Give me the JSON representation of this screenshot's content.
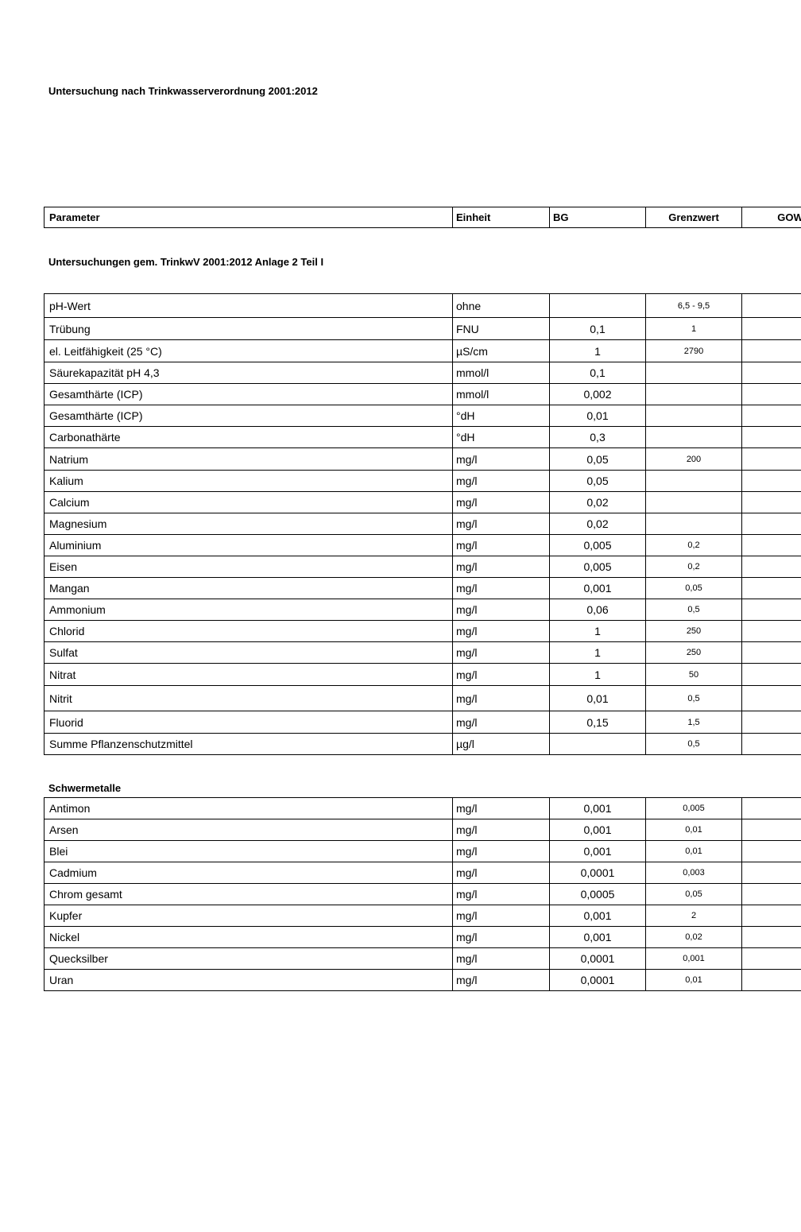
{
  "title": "Untersuchung nach Trinkwasserverordnung 2001:2012",
  "header": {
    "parameter": "Parameter",
    "einheit": "Einheit",
    "bg": "BG",
    "grenzwert": "Grenzwert",
    "gow": "GOW"
  },
  "section1": {
    "title": "Untersuchungen gem. TrinkwV 2001:2012 Anlage 2 Teil I",
    "rows": [
      {
        "p": "pH-Wert",
        "u": "ohne",
        "bg": "",
        "gw": "6,5 - 9,5"
      },
      {
        "p": "Trübung",
        "u": "FNU",
        "bg": "0,1",
        "gw": "1"
      },
      {
        "p": "el. Leitfähigkeit (25 °C)",
        "u": "µS/cm",
        "bg": "1",
        "gw": "2790"
      },
      {
        "p": "Säurekapazität pH 4,3",
        "u": "mmol/l",
        "bg": "0,1",
        "gw": ""
      },
      {
        "p": "Gesamthärte (ICP)",
        "u": "mmol/l",
        "bg": "0,002",
        "gw": ""
      },
      {
        "p": "Gesamthärte (ICP)",
        "u": "°dH",
        "bg": "0,01",
        "gw": ""
      },
      {
        "p": "Carbonathärte",
        "u": "°dH",
        "bg": "0,3",
        "gw": ""
      },
      {
        "p": "Natrium",
        "u": "mg/l",
        "bg": "0,05",
        "gw": "200"
      },
      {
        "p": "Kalium",
        "u": "mg/l",
        "bg": "0,05",
        "gw": ""
      },
      {
        "p": "Calcium",
        "u": "mg/l",
        "bg": "0,02",
        "gw": ""
      },
      {
        "p": "Magnesium",
        "u": "mg/l",
        "bg": "0,02",
        "gw": ""
      },
      {
        "p": "Aluminium",
        "u": "mg/l",
        "bg": "0,005",
        "gw": "0,2"
      },
      {
        "p": "Eisen",
        "u": "mg/l",
        "bg": "0,005",
        "gw": "0,2"
      },
      {
        "p": "Mangan",
        "u": "mg/l",
        "bg": "0,001",
        "gw": "0,05"
      },
      {
        "p": "Ammonium",
        "u": "mg/l",
        "bg": "0,06",
        "gw": "0,5"
      },
      {
        "p": "Chlorid",
        "u": "mg/l",
        "bg": "1",
        "gw": "250"
      },
      {
        "p": "Sulfat",
        "u": "mg/l",
        "bg": "1",
        "gw": "250"
      },
      {
        "p": "Nitrat",
        "u": "mg/l",
        "bg": "1",
        "gw": "50"
      },
      {
        "p": "Nitrit",
        "u": "mg/l",
        "bg": "0,01",
        "gw": "0,5"
      },
      {
        "p": "Fluorid",
        "u": "mg/l",
        "bg": "0,15",
        "gw": "1,5"
      },
      {
        "p": "Summe Pflanzenschutzmittel",
        "u": "µg/l",
        "bg": "",
        "gw": "0,5"
      }
    ]
  },
  "section2": {
    "title": "Schwermetalle",
    "rows": [
      {
        "p": "Antimon",
        "u": "mg/l",
        "bg": "0,001",
        "gw": "0,005"
      },
      {
        "p": "Arsen",
        "u": "mg/l",
        "bg": "0,001",
        "gw": "0,01"
      },
      {
        "p": "Blei",
        "u": "mg/l",
        "bg": "0,001",
        "gw": "0,01"
      },
      {
        "p": "Cadmium",
        "u": "mg/l",
        "bg": "0,0001",
        "gw": "0,003"
      },
      {
        "p": "Chrom gesamt",
        "u": "mg/l",
        "bg": "0,0005",
        "gw": "0,05"
      },
      {
        "p": "Kupfer",
        "u": "mg/l",
        "bg": "0,001",
        "gw": "2"
      },
      {
        "p": "Nickel",
        "u": "mg/l",
        "bg": "0,001",
        "gw": "0,02"
      },
      {
        "p": "Quecksilber",
        "u": "mg/l",
        "bg": "0,0001",
        "gw": "0,001"
      },
      {
        "p": "Uran",
        "u": "mg/l",
        "bg": "0,0001",
        "gw": "0,01"
      }
    ]
  }
}
